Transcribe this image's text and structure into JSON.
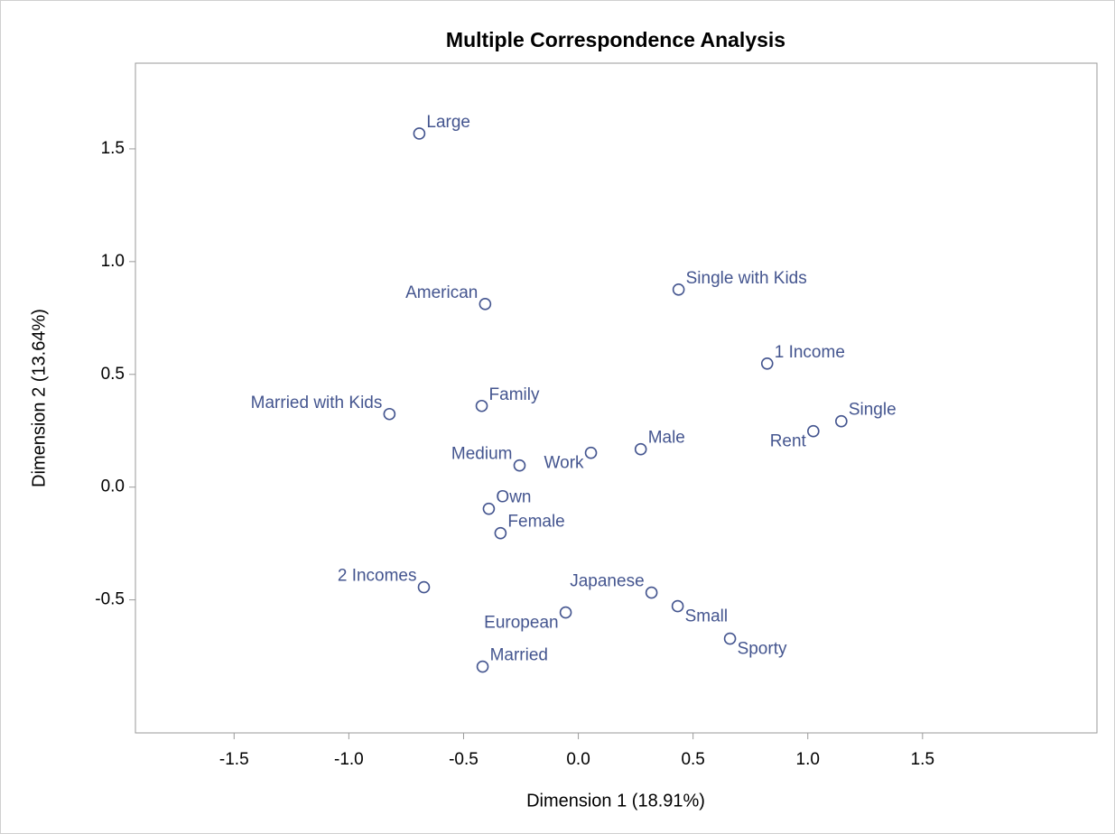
{
  "chart_data": {
    "type": "scatter",
    "title": "Multiple Correspondence Analysis",
    "x_label": "Dimension 1 (18.91%)",
    "y_label": "Dimension 2 (13.64%)",
    "color": "#44558f",
    "xlim": [
      -1.93,
      2.26
    ],
    "ylim": [
      -1.09,
      1.88
    ],
    "xticks": [
      -1.5,
      {
        "value": -1,
        "label": "-1.0"
      },
      -0.5,
      {
        "value": 0,
        "label": "0.0"
      },
      0.5,
      {
        "value": 1,
        "label": "1.0"
      },
      1.5
    ],
    "yticks": [
      -0.5,
      {
        "value": 0,
        "label": "0.0"
      },
      0.5,
      {
        "value": 1,
        "label": "1.0"
      },
      1.5
    ],
    "points": [
      "Large",
      "American",
      "Single with Kids",
      "1 Income",
      "Married with Kids",
      "Family",
      "Single",
      "Rent",
      "Male",
      "Work",
      "Medium",
      "Own",
      "Female",
      "2 Incomes",
      "Japanese",
      "Small",
      "European",
      "Sporty",
      "Married"
    ],
    "x": [
      -0.693,
      -0.406,
      0.437,
      0.823,
      -0.823,
      -0.421,
      1.146,
      1.024,
      0.272,
      0.055,
      -0.256,
      -0.39,
      -0.339,
      -0.673,
      0.319,
      0.433,
      -0.055,
      0.661,
      -0.417
    ],
    "y": [
      1.568,
      0.812,
      0.876,
      0.548,
      0.324,
      0.36,
      0.292,
      0.248,
      0.168,
      0.152,
      0.096,
      -0.096,
      -0.204,
      -0.444,
      -0.468,
      -0.528,
      -0.556,
      -0.672,
      -0.796
    ]
  }
}
